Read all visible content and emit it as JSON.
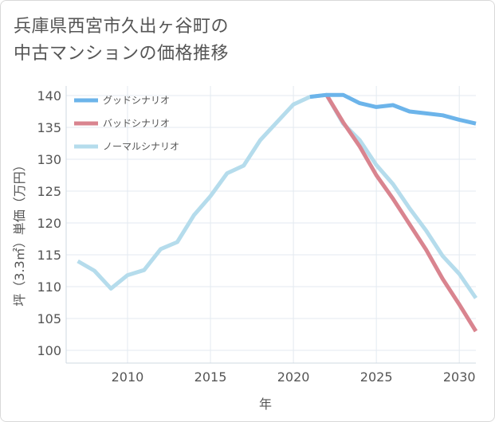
{
  "title": {
    "line1": "兵庫県西宮市久出ヶ谷町の",
    "line2": "中古マンションの価格推移"
  },
  "chart_data": {
    "type": "line",
    "title": "兵庫県西宮市久出ヶ谷町の中古マンションの価格推移",
    "xlabel": "年",
    "ylabel": "坪（3.3㎡）単価（万円）",
    "xlim": [
      2006.3,
      2031
    ],
    "ylim": [
      98,
      141.5
    ],
    "x_ticks": [
      2010,
      2015,
      2020,
      2025,
      2030
    ],
    "y_ticks": [
      100,
      105,
      110,
      115,
      120,
      125,
      130,
      135,
      140
    ],
    "grid": true,
    "legend_position": "top-left",
    "series": [
      {
        "name": "グッドシナリオ",
        "color": "#6cb4ea",
        "x": [
          2021,
          2022,
          2023,
          2024,
          2025,
          2026,
          2027,
          2028,
          2029,
          2030,
          2031
        ],
        "values": [
          139.8,
          140.1,
          140.1,
          138.8,
          138.2,
          138.5,
          137.5,
          137.2,
          136.9,
          136.2,
          135.6
        ]
      },
      {
        "name": "バッドシナリオ",
        "color": "#d9848f",
        "x": [
          2022,
          2023,
          2024,
          2025,
          2026,
          2027,
          2028,
          2029,
          2030,
          2031
        ],
        "values": [
          140.1,
          135.8,
          132.0,
          127.5,
          123.8,
          119.8,
          115.8,
          111.2,
          107.2,
          103.0
        ]
      },
      {
        "name": "ノーマルシナリオ",
        "color": "#b5dcec",
        "x": [
          2007,
          2008,
          2009,
          2010,
          2011,
          2012,
          2013,
          2014,
          2015,
          2016,
          2017,
          2018,
          2019,
          2020,
          2021,
          2022,
          2023,
          2024,
          2025,
          2026,
          2027,
          2028,
          2029,
          2030,
          2031
        ],
        "values": [
          114.0,
          112.5,
          109.7,
          111.8,
          112.6,
          115.9,
          117.0,
          121.2,
          124.2,
          127.8,
          129.0,
          133.0,
          135.8,
          138.6,
          139.8,
          140.1,
          135.6,
          133.0,
          129.1,
          126.1,
          122.3,
          118.8,
          114.8,
          112.0,
          108.2
        ]
      }
    ]
  }
}
